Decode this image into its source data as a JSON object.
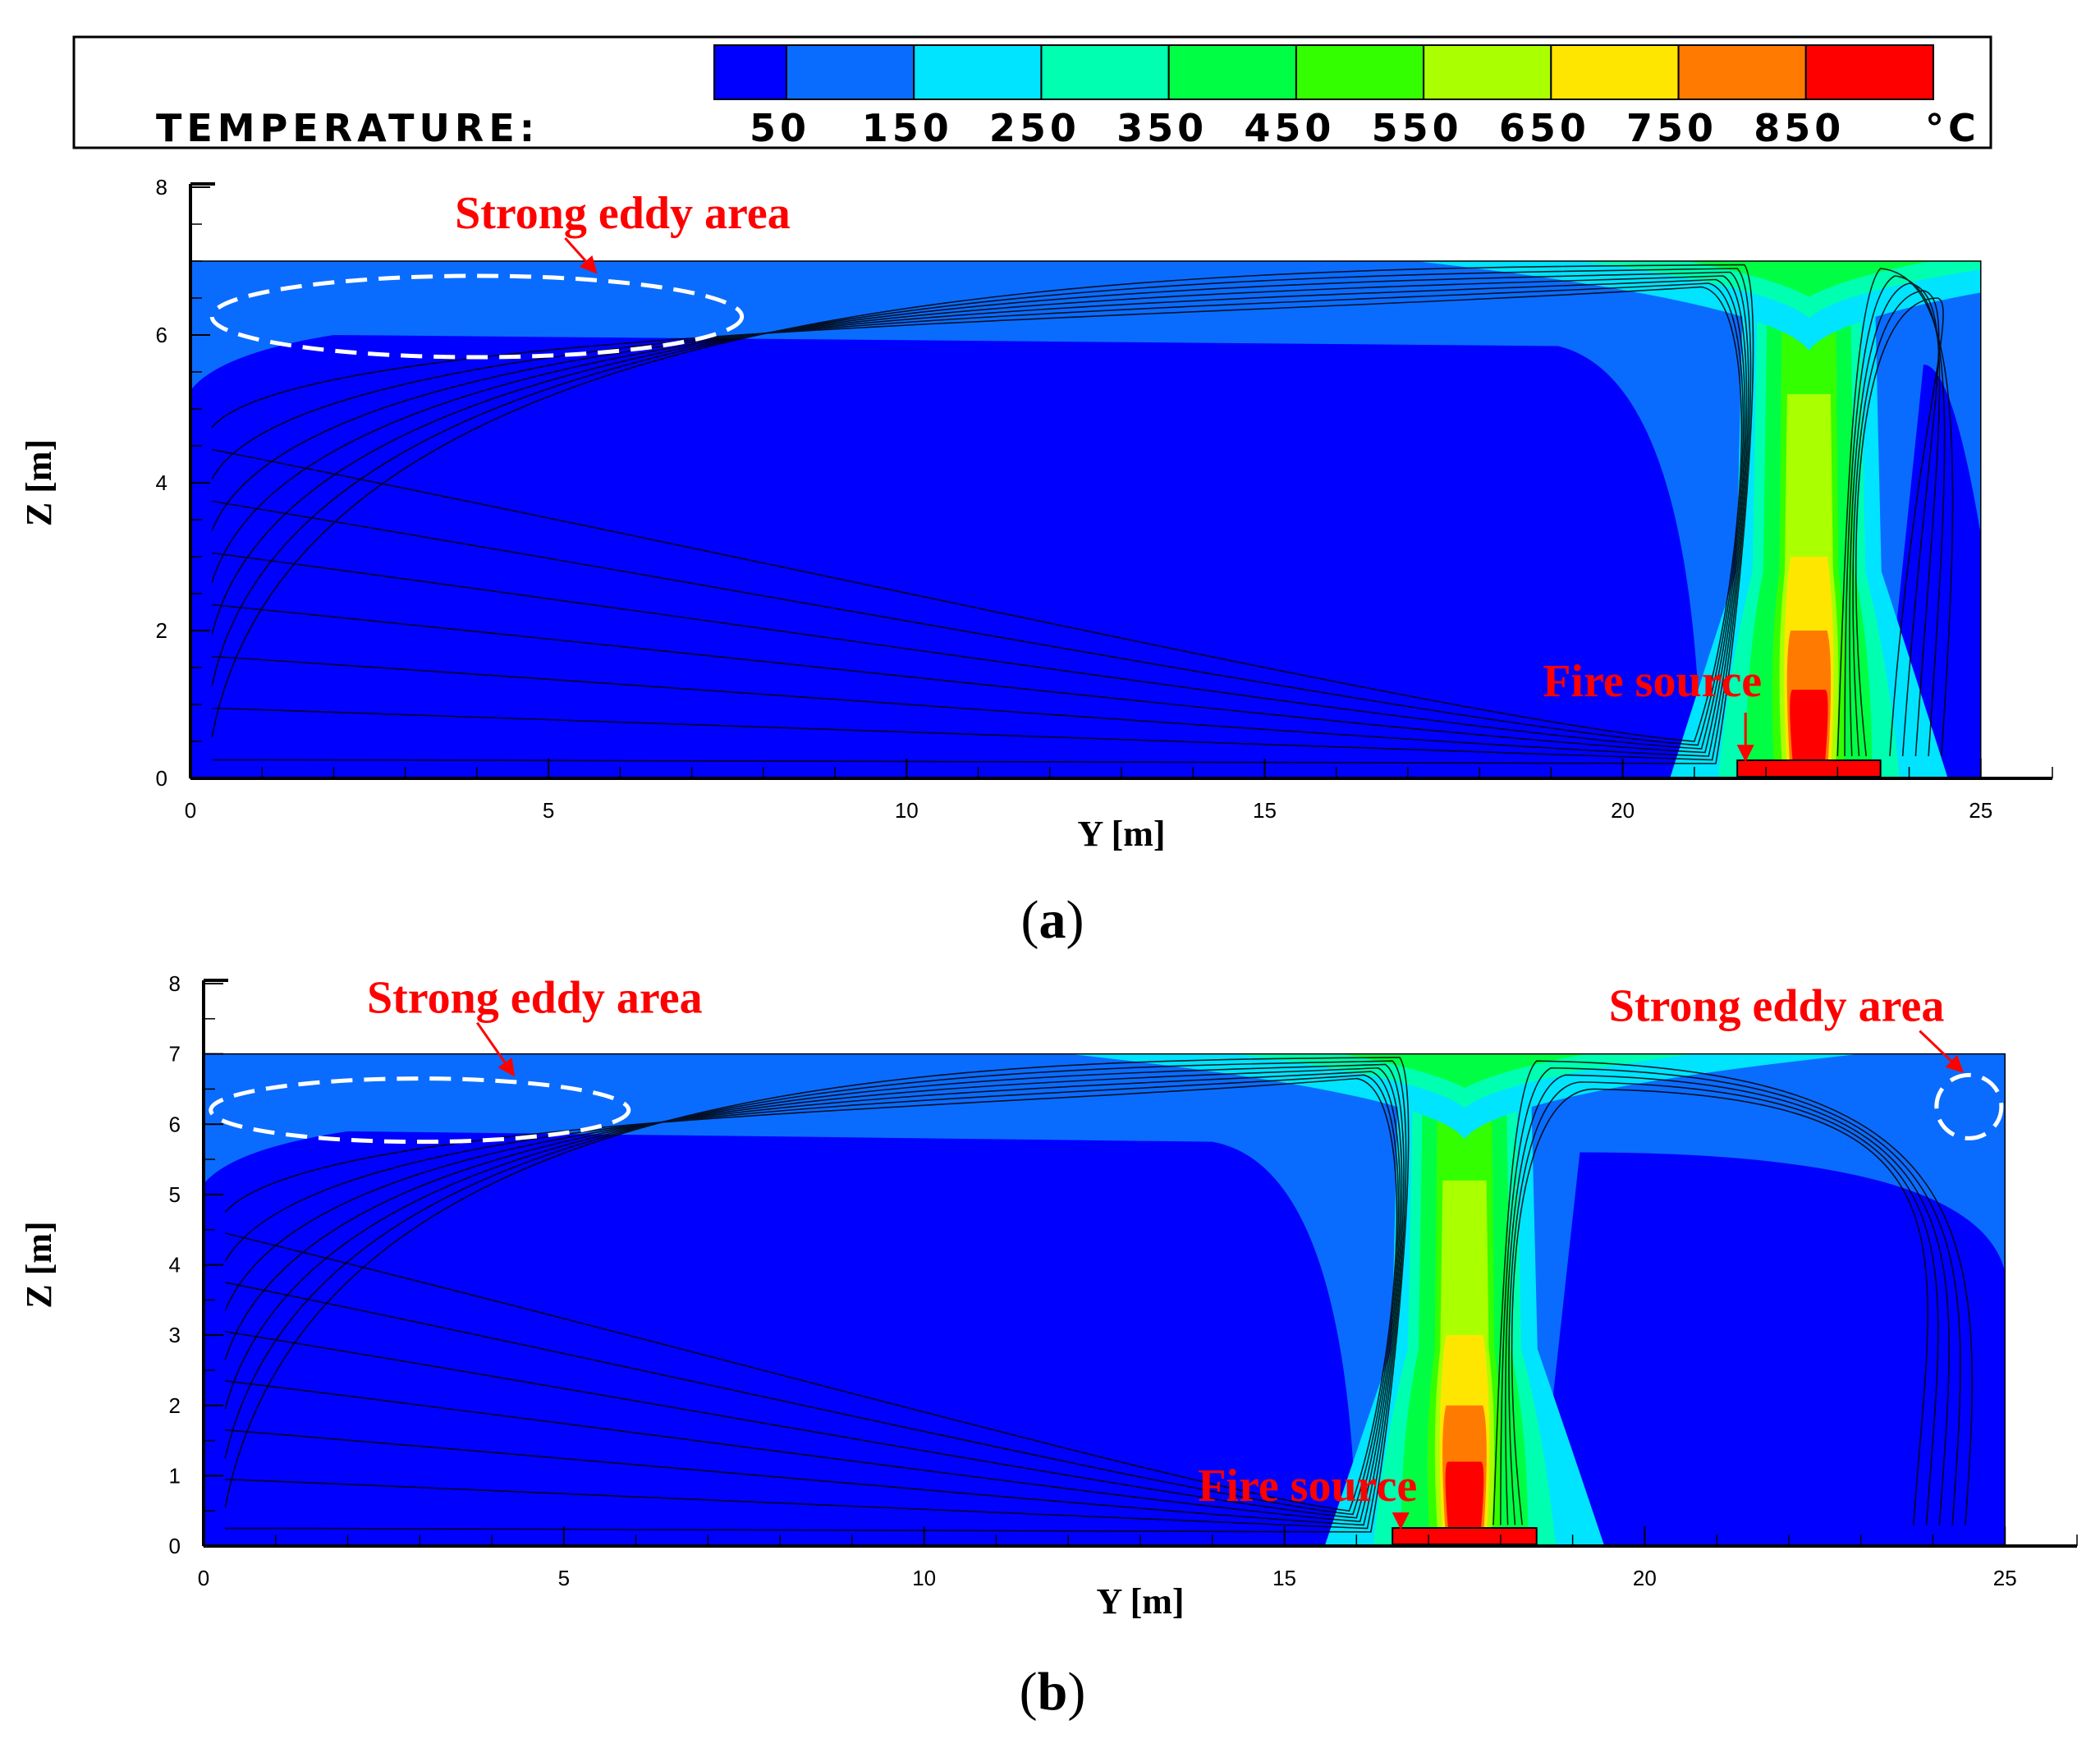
{
  "legend": {
    "title": "TEMPERATURE:",
    "unit": "°C",
    "levels": [
      "50",
      "150",
      "250",
      "350",
      "450",
      "550",
      "650",
      "750",
      "850"
    ],
    "colors": [
      "#0000ff",
      "#0a6cff",
      "#00e4ff",
      "#00ffb0",
      "#00ff44",
      "#33ff00",
      "#aaff00",
      "#ffe600",
      "#ff7a00",
      "#ff0000"
    ]
  },
  "chart_data": [
    {
      "type": "heatmap",
      "panel": "(a)",
      "panel_paren_open": "(",
      "panel_letter": "a",
      "panel_paren_close": ")",
      "xlabel": "Y [m]",
      "ylabel": "Z [m]",
      "xlim": [
        0,
        26
      ],
      "ylim": [
        0,
        8
      ],
      "xticks": [
        "0",
        "5",
        "10",
        "15",
        "20",
        "25"
      ],
      "yticks": [
        "0",
        "2",
        "4",
        "6",
        "8"
      ],
      "domain": {
        "y": [
          0,
          25
        ],
        "z": [
          0,
          7
        ]
      },
      "fire_source": {
        "y_start": 21.6,
        "y_end": 23.6,
        "label": "Fire source"
      },
      "plume_center_y": 22.6,
      "annotations": [
        {
          "text": "Strong eddy area",
          "ellipse_center": [
            4.0,
            6.25
          ],
          "ellipse_radii": [
            3.7,
            0.55
          ]
        }
      ]
    },
    {
      "type": "heatmap",
      "panel": "(b)",
      "panel_paren_open": "(",
      "panel_letter": "b",
      "panel_paren_close": ")",
      "xlabel": "Y [m]",
      "ylabel": "Z [m]",
      "xlim": [
        0,
        26
      ],
      "ylim": [
        0,
        8
      ],
      "xticks": [
        "0",
        "5",
        "10",
        "15",
        "20",
        "25"
      ],
      "yticks": [
        "0",
        "1",
        "2",
        "3",
        "4",
        "5",
        "6",
        "7",
        "8"
      ],
      "domain": {
        "y": [
          0,
          25
        ],
        "z": [
          0,
          7
        ]
      },
      "fire_source": {
        "y_start": 16.5,
        "y_end": 18.5,
        "label": "Fire source"
      },
      "plume_center_y": 17.5,
      "annotations": [
        {
          "text": "Strong eddy area",
          "ellipse_center": [
            3.0,
            6.2
          ],
          "ellipse_radii": [
            2.9,
            0.45
          ]
        },
        {
          "text": "Strong eddy area",
          "ellipse_center": [
            24.5,
            6.25
          ],
          "ellipse_radii": [
            0.45,
            0.45
          ]
        }
      ]
    }
  ]
}
